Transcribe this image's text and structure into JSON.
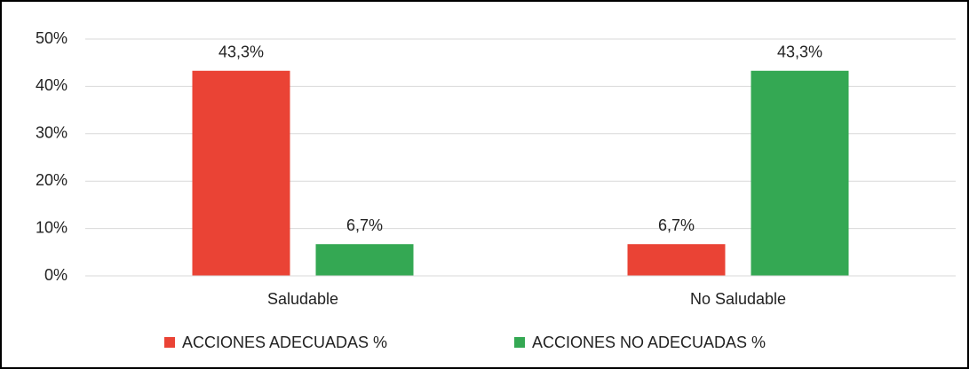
{
  "chart_data": {
    "type": "bar",
    "categories": [
      "Saludable",
      "No Saludable"
    ],
    "series": [
      {
        "name": "ACCIONES ADECUADAS %",
        "color": "#ea4335",
        "values": [
          43.3,
          6.7
        ],
        "value_labels": [
          "43,3%",
          "6,7%"
        ]
      },
      {
        "name": "ACCIONES NO ADECUADAS %",
        "color": "#34a853",
        "values": [
          6.7,
          43.3
        ],
        "value_labels": [
          "6,7%",
          "43,3%"
        ]
      }
    ],
    "ylim": [
      0,
      50
    ],
    "yticks": [
      {
        "value": 0,
        "label": "0%"
      },
      {
        "value": 10,
        "label": "10%"
      },
      {
        "value": 20,
        "label": "20%"
      },
      {
        "value": 30,
        "label": "30%"
      },
      {
        "value": 40,
        "label": "40%"
      },
      {
        "value": 50,
        "label": "50%"
      }
    ],
    "grid": true,
    "legend": "bottom"
  }
}
